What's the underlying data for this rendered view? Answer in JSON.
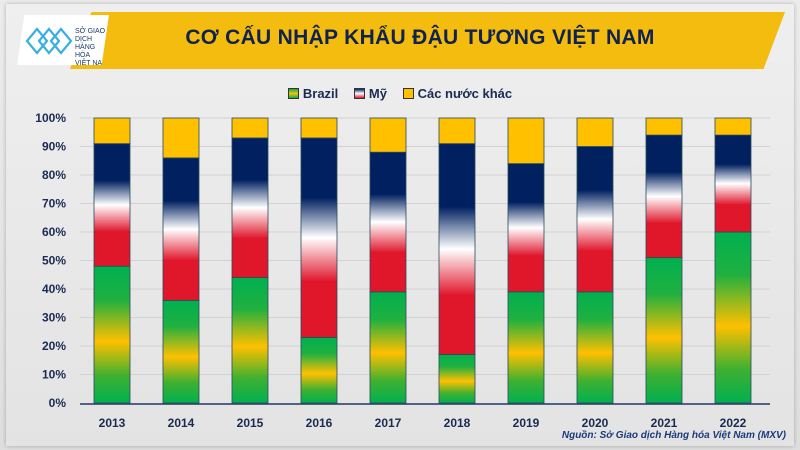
{
  "header": {
    "title": "CƠ CẤU NHẬP KHẨU ĐẬU TƯƠNG VIỆT NAM",
    "logo_text": [
      "SỞ GIAO DỊCH",
      "HÀNG HÓA",
      "VIỆT NAM"
    ]
  },
  "source": "Nguồn: Sở Giao dịch Hàng hóa Việt Nam (MXV)",
  "colors": {
    "brazil": "#00b050",
    "brazil_band": "#ffc000",
    "my_bottom": "#e0162b",
    "my_middle": "#ffffff",
    "my_top": "#002060",
    "others": "#ffc000",
    "banner": "#f3bc0f",
    "title": "#0f2250"
  },
  "chart_data": {
    "type": "bar",
    "stacked": true,
    "title": "CƠ CẤU NHẬP KHẨU ĐẬU TƯƠNG VIỆT NAM",
    "categories": [
      "2013",
      "2014",
      "2015",
      "2016",
      "2017",
      "2018",
      "2019",
      "2020",
      "2021",
      "2022"
    ],
    "series": [
      {
        "name": "Brazil",
        "values": [
          48,
          36,
          44,
          23,
          39,
          17,
          39,
          39,
          51,
          60
        ]
      },
      {
        "name": "Mỹ",
        "values": [
          43,
          50,
          49,
          70,
          49,
          74,
          45,
          51,
          43,
          34
        ]
      },
      {
        "name": "Các nước khác",
        "values": [
          9,
          14,
          7,
          7,
          12,
          9,
          16,
          10,
          6,
          6
        ]
      }
    ],
    "ylim": [
      0,
      100
    ],
    "yticks": [
      "0%",
      "10%",
      "20%",
      "30%",
      "40%",
      "50%",
      "60%",
      "70%",
      "80%",
      "90%",
      "100%"
    ],
    "grid": true,
    "legend": "top-center"
  }
}
